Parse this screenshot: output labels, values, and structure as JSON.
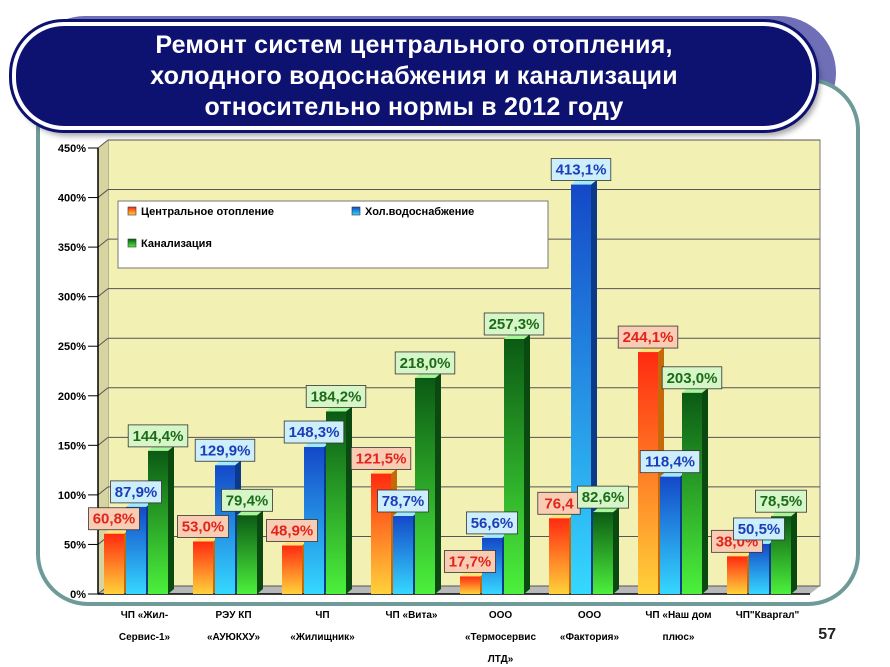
{
  "title_lines": [
    "Ремонт систем центрального отопления,",
    "холодного водоснабжения и канализации",
    "относительно нормы в 2012 году"
  ],
  "page_number": "57",
  "chart_data": {
    "type": "bar",
    "categories": [
      [
        "ЧП «Жил-",
        "Сервис-1»"
      ],
      [
        "РЭУ КП",
        "«АУЮКХУ»"
      ],
      [
        "ЧП",
        "«Жилищник»"
      ],
      [
        "ЧП «Вита»",
        ""
      ],
      [
        "ООО",
        "«Термосервис",
        "ЛТД»"
      ],
      [
        "ООО",
        "«Фактория»"
      ],
      [
        "ЧП «Наш дом",
        "плюс»"
      ],
      [
        "ЧП\"Кваргал\"",
        ""
      ]
    ],
    "series": [
      {
        "name": "Центральное отопление",
        "values": [
          60.8,
          53.0,
          48.9,
          121.5,
          17.7,
          76.4,
          244.1,
          38.0
        ],
        "labels": [
          "60,8%",
          "53,0%",
          "48,9%",
          "121,5%",
          "17,7%",
          "76,4",
          "244,1%",
          "38,0%"
        ],
        "label_color": "#e0241c",
        "label_bg": "#f8cdb4"
      },
      {
        "name": "Хол.водоснабжение",
        "values": [
          87.9,
          129.9,
          148.3,
          78.7,
          56.6,
          413.1,
          118.4,
          50.5
        ],
        "labels": [
          "87,9%",
          "129,9%",
          "148,3%",
          "78,7%",
          "56,6%",
          "413,1%",
          "118,4%",
          "50,5%"
        ],
        "label_color": "#1b3eb8",
        "label_bg": "#cdeefb"
      },
      {
        "name": "Канализация",
        "values": [
          144.4,
          79.4,
          184.2,
          218.0,
          257.3,
          82.6,
          203.0,
          78.5
        ],
        "labels": [
          "144,4%",
          "79,4%",
          "184,2%",
          "218,0%",
          "257,3%",
          "82,6%",
          "203,0%",
          "78,5%"
        ],
        "label_color": "#1c6b18",
        "label_bg": "#d6f6c8"
      }
    ],
    "y_ticks": [
      "0%",
      "50%",
      "100%",
      "150%",
      "200%",
      "250%",
      "300%",
      "350%",
      "400%",
      "450%"
    ],
    "ylim": [
      0,
      450
    ],
    "grid": true,
    "legend_position": "top-left",
    "colors": {
      "plot_bg": "#f3f0b4",
      "heating_from": "#ffd23a",
      "heating_to": "#ff2a10",
      "water_from": "#35d8ff",
      "water_to": "#1448c8",
      "sewage_from": "#4cf03c",
      "sewage_to": "#0b5a14"
    }
  }
}
